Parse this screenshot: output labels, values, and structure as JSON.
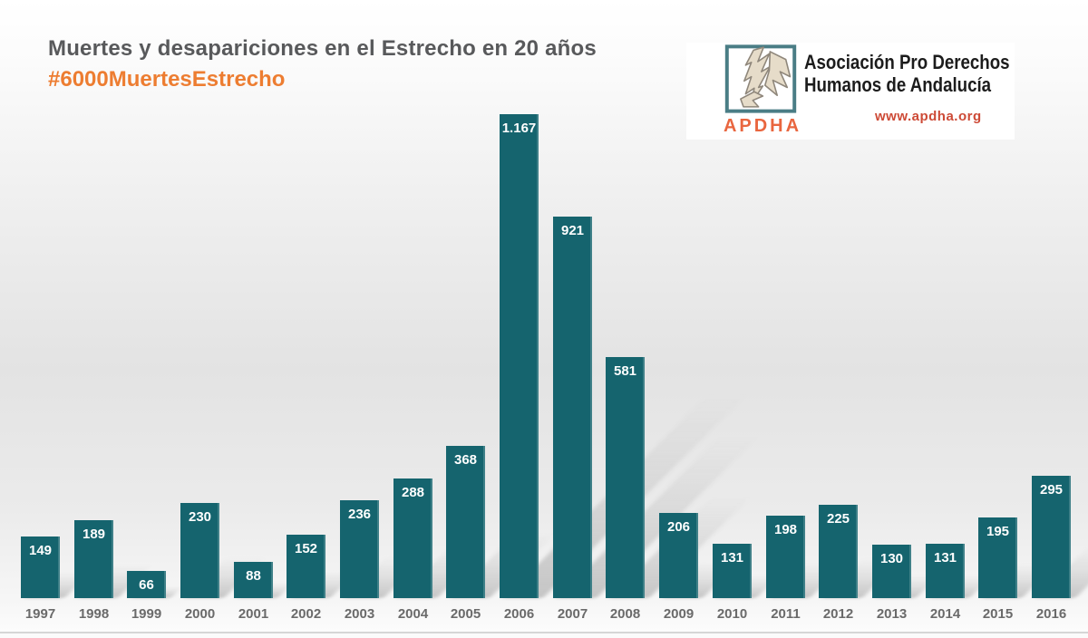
{
  "header": {
    "title": "Muertes y desapariciones en el Estrecho en 20 años",
    "hashtag": "#6000MuertesEstrecho",
    "title_color": "#58595B",
    "hashtag_color": "#ED7D31"
  },
  "logo": {
    "acronym": "APDHA",
    "name_line1": "Asociación Pro Derechos",
    "name_line2": "Humanos de Andalucía",
    "website": "www.apdha.org",
    "icon": "apdha-hand-logo",
    "acronym_color": "#E9663F",
    "website_color": "#CD4A36"
  },
  "chart_data": {
    "type": "bar",
    "title": "Muertes y desapariciones en el Estrecho en 20 años",
    "subtitle": "#6000MuertesEstrecho",
    "categories": [
      "1997",
      "1998",
      "1999",
      "2000",
      "2001",
      "2002",
      "2003",
      "2004",
      "2005",
      "2006",
      "2007",
      "2008",
      "2009",
      "2010",
      "2011",
      "2012",
      "2013",
      "2014",
      "2015",
      "2016"
    ],
    "values": [
      149,
      189,
      66,
      230,
      88,
      152,
      236,
      288,
      368,
      1167,
      921,
      581,
      206,
      131,
      198,
      225,
      130,
      131,
      195,
      295
    ],
    "value_labels": [
      "149",
      "189",
      "66",
      "230",
      "88",
      "152",
      "236",
      "288",
      "368",
      "1.167",
      "921",
      "581",
      "206",
      "131",
      "198",
      "225",
      "130",
      "131",
      "195",
      "295"
    ],
    "xlabel": "",
    "ylabel": "",
    "ylim": [
      0,
      1200
    ],
    "grid": false,
    "legend": "none",
    "bar_color": "#15646E",
    "value_label_color": "#FFFFFF",
    "axis_label_color": "#6A6A6A"
  }
}
